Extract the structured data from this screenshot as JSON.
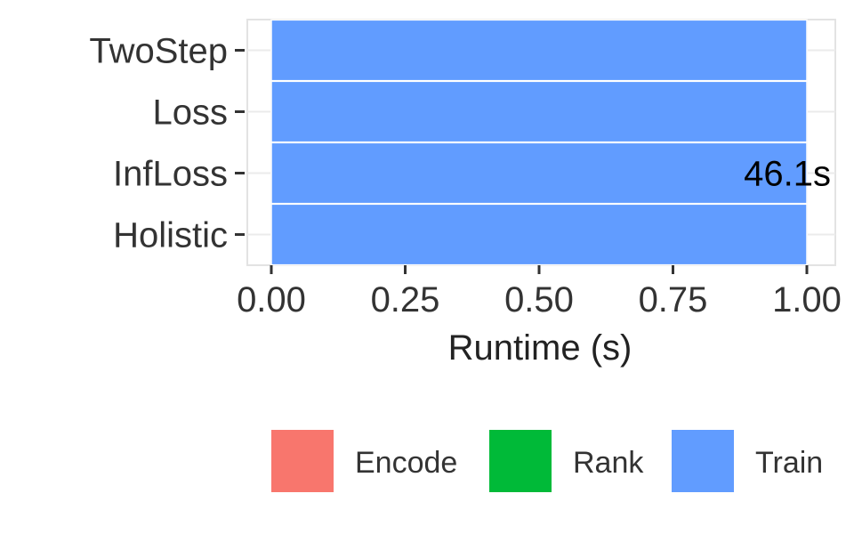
{
  "chart_data": {
    "type": "bar",
    "orientation": "horizontal",
    "stacked": true,
    "categories": [
      "TwoStep",
      "Loss",
      "InfLoss",
      "Holistic"
    ],
    "series": [
      {
        "name": "Encode",
        "color": "#F8766D",
        "values": [
          0,
          0,
          0,
          0
        ]
      },
      {
        "name": "Rank",
        "color": "#00BA38",
        "values": [
          0,
          0,
          0,
          0
        ]
      },
      {
        "name": "Train",
        "color": "#619CFF",
        "values": [
          1,
          1,
          1,
          1
        ]
      }
    ],
    "annotations": [
      {
        "category": "InfLoss",
        "text": "46.1s"
      }
    ],
    "xlabel": "Runtime (s)",
    "ylabel": "",
    "xlim": [
      0,
      1.05
    ],
    "xticks": [
      "0.00",
      "0.25",
      "0.50",
      "0.75",
      "1.00"
    ],
    "grid": true,
    "legend_position": "bottom"
  }
}
